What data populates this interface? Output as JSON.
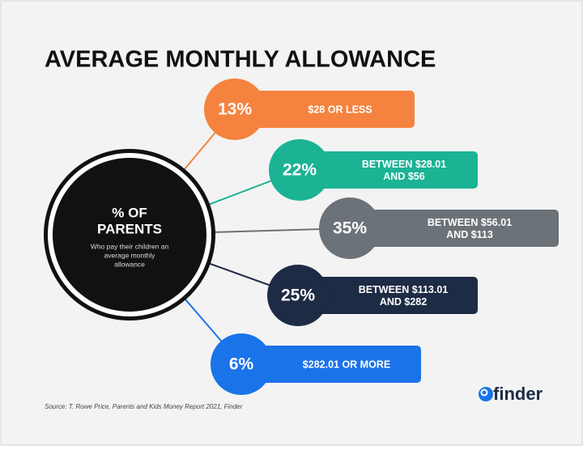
{
  "title": "AVERAGE MONTHLY ALLOWANCE",
  "center": {
    "title": [
      "% OF",
      "PARENTS"
    ],
    "subtitle": [
      "Who pay their children an",
      "average monthly",
      "allowance"
    ]
  },
  "items": [
    {
      "percent": "13%",
      "label": [
        "$28 OR LESS"
      ],
      "color": "#f5833f"
    },
    {
      "percent": "22%",
      "label": [
        "BETWEEN $28.01",
        "AND $56"
      ],
      "color": "#1bb394"
    },
    {
      "percent": "35%",
      "label": [
        "BETWEEN $56.01",
        "AND $113"
      ],
      "color": "#6b7278"
    },
    {
      "percent": "25%",
      "label": [
        "BETWEEN $113.01",
        "AND $282"
      ],
      "color": "#1e2b45"
    },
    {
      "percent": "6%",
      "label": [
        "$282.01 OR MORE"
      ],
      "color": "#1a73e8"
    }
  ],
  "source": "Source: T. Rowe Price, Parents and Kids Money Report 2021, Finder",
  "logo": "finder"
}
